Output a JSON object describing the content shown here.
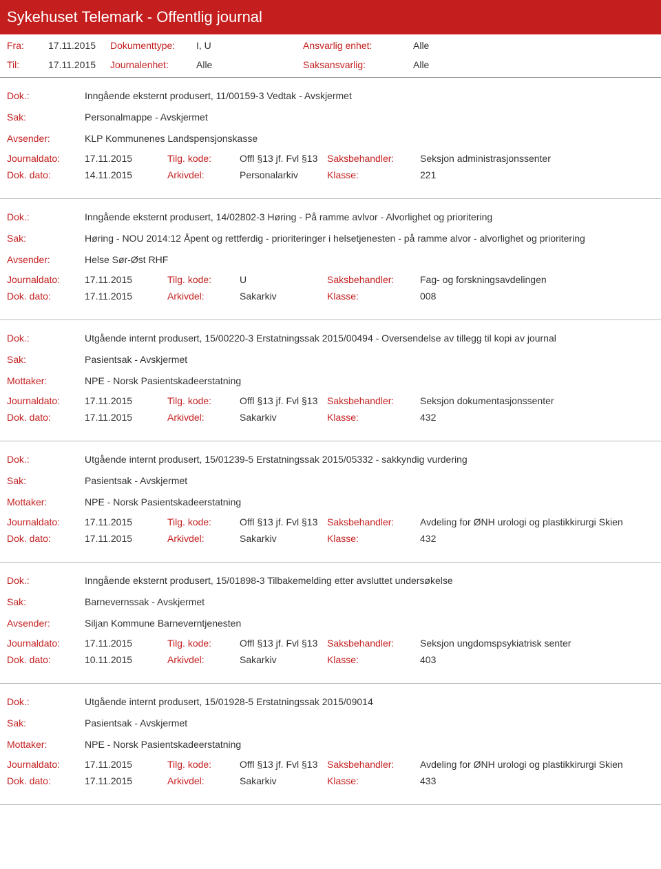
{
  "header": {
    "title": "Sykehuset Telemark - Offentlig journal"
  },
  "filters": {
    "fra_label": "Fra:",
    "fra_value": "17.11.2015",
    "til_label": "Til:",
    "til_value": "17.11.2015",
    "doktype_label": "Dokumenttype:",
    "doktype_value": "I, U",
    "journalenhet_label": "Journalenhet:",
    "journalenhet_value": "Alle",
    "ansvarlig_label": "Ansvarlig enhet:",
    "ansvarlig_value": "Alle",
    "saksansvarlig_label": "Saksansvarlig:",
    "saksansvarlig_value": "Alle"
  },
  "labels": {
    "dok": "Dok.:",
    "sak": "Sak:",
    "avsender": "Avsender:",
    "mottaker": "Mottaker:",
    "journaldato": "Journaldato:",
    "tilgkode": "Tilg. kode:",
    "saksbehandler": "Saksbehandler:",
    "dokdato": "Dok. dato:",
    "arkivdel": "Arkivdel:",
    "klasse": "Klasse:"
  },
  "entries": [
    {
      "dok": "Inngående eksternt produsert, 11/00159-3 Vedtak - Avskjermet",
      "sak": "Personalmappe - Avskjermet",
      "party_label": "avsender",
      "party": "KLP Kommunenes Landspensjonskasse",
      "journaldato": "17.11.2015",
      "tilgkode": "Offl §13 jf. Fvl §13",
      "saksbehandler": "Seksjon administrasjonssenter",
      "dokdato": "14.11.2015",
      "arkivdel": "Personalarkiv",
      "klasse": "221"
    },
    {
      "dok": "Inngående eksternt produsert, 14/02802-3 Høring - På ramme avlvor - Alvorlighet og prioritering",
      "sak": "Høring - NOU 2014:12 Åpent og rettferdig - prioriteringer i helsetjenesten - på ramme alvor - alvorlighet og prioritering",
      "party_label": "avsender",
      "party": "Helse Sør-Øst RHF",
      "journaldato": "17.11.2015",
      "tilgkode": "U",
      "saksbehandler": "Fag- og forskningsavdelingen",
      "dokdato": "17.11.2015",
      "arkivdel": "Sakarkiv",
      "klasse": "008"
    },
    {
      "dok": "Utgående internt produsert, 15/00220-3 Erstatningssak 2015/00494 - Oversendelse av tillegg til kopi av journal",
      "sak": "Pasientsak - Avskjermet",
      "party_label": "mottaker",
      "party": "NPE - Norsk Pasientskadeerstatning",
      "journaldato": "17.11.2015",
      "tilgkode": "Offl §13 jf. Fvl §13",
      "saksbehandler": "Seksjon dokumentasjonssenter",
      "dokdato": "17.11.2015",
      "arkivdel": "Sakarkiv",
      "klasse": "432"
    },
    {
      "dok": "Utgående internt produsert, 15/01239-5 Erstatningssak 2015/05332 - sakkyndig vurdering",
      "sak": "Pasientsak - Avskjermet",
      "party_label": "mottaker",
      "party": "NPE - Norsk Pasientskadeerstatning",
      "journaldato": "17.11.2015",
      "tilgkode": "Offl §13 jf. Fvl §13",
      "saksbehandler": "Avdeling for ØNH urologi og plastikkirurgi Skien",
      "dokdato": "17.11.2015",
      "arkivdel": "Sakarkiv",
      "klasse": "432"
    },
    {
      "dok": "Inngående eksternt produsert, 15/01898-3 Tilbakemelding etter avsluttet undersøkelse",
      "sak": "Barnevernssak - Avskjermet",
      "party_label": "avsender",
      "party": "Siljan Kommune Barneverntjenesten",
      "journaldato": "17.11.2015",
      "tilgkode": "Offl §13 jf. Fvl §13",
      "saksbehandler": "Seksjon ungdomspsykiatrisk senter",
      "dokdato": "10.11.2015",
      "arkivdel": "Sakarkiv",
      "klasse": "403"
    },
    {
      "dok": "Utgående internt produsert, 15/01928-5 Erstatningssak 2015/09014",
      "sak": "Pasientsak - Avskjermet",
      "party_label": "mottaker",
      "party": "NPE - Norsk Pasientskadeerstatning",
      "journaldato": "17.11.2015",
      "tilgkode": "Offl §13 jf. Fvl §13",
      "saksbehandler": "Avdeling for ØNH urologi og plastikkirurgi Skien",
      "dokdato": "17.11.2015",
      "arkivdel": "Sakarkiv",
      "klasse": "433"
    }
  ]
}
